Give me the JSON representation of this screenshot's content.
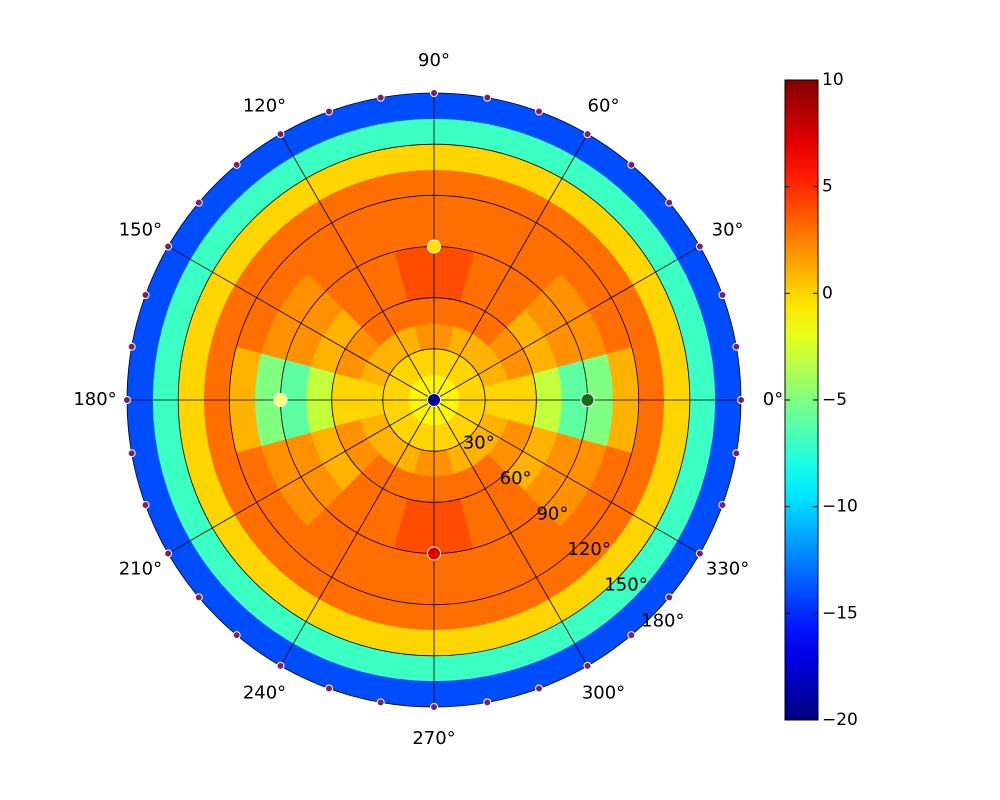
{
  "chart_data": {
    "type": "polar_heatmap",
    "colormap": "jet",
    "grid": true,
    "r_edges": [
      0,
      15,
      30,
      45,
      60,
      75,
      90,
      105,
      120,
      135,
      150,
      165,
      180
    ],
    "theta_edges": [
      -15,
      15,
      45,
      75,
      105,
      135,
      165,
      195,
      225,
      255,
      285,
      315,
      345
    ],
    "values": [
      [
        -1,
        -1,
        -1,
        -1,
        -1,
        -1,
        -1,
        -1,
        -1,
        -1,
        -1,
        -1
      ],
      [
        0,
        0,
        0,
        0,
        0,
        0,
        0,
        0,
        0,
        0,
        0,
        0
      ],
      [
        0,
        1,
        1,
        2,
        1,
        1,
        0,
        1,
        1,
        2,
        1,
        1
      ],
      [
        0,
        2,
        3,
        3,
        3,
        2,
        0,
        2,
        3,
        3,
        3,
        2
      ],
      [
        -3,
        1,
        3,
        4,
        3,
        1,
        -3,
        1,
        3,
        4,
        3,
        1
      ],
      [
        -6,
        2,
        3,
        4,
        3,
        2,
        -6,
        2,
        3,
        4,
        3,
        2
      ],
      [
        -5,
        2,
        3,
        3,
        3,
        2,
        -5,
        2,
        3,
        3,
        3,
        2
      ],
      [
        1,
        3,
        3,
        3,
        3,
        3,
        1,
        3,
        3,
        3,
        3,
        3
      ],
      [
        3,
        3,
        3,
        3,
        3,
        3,
        3,
        3,
        3,
        3,
        3,
        3
      ],
      [
        0,
        0,
        0,
        0,
        0,
        0,
        0,
        0,
        0,
        0,
        0,
        0
      ],
      [
        -7,
        -7,
        -7,
        -7,
        -7,
        -7,
        -7,
        -7,
        -7,
        -7,
        -7,
        -7
      ],
      [
        -14,
        -14,
        -14,
        -14,
        -14,
        -14,
        -14,
        -14,
        -14,
        -14,
        -14,
        -14
      ]
    ],
    "rlim": [
      0,
      180
    ],
    "rticks": [
      {
        "value": 30,
        "label": "30°"
      },
      {
        "value": 60,
        "label": "60°"
      },
      {
        "value": 90,
        "label": "90°"
      },
      {
        "value": 120,
        "label": "120°"
      },
      {
        "value": 150,
        "label": "150°"
      },
      {
        "value": 180,
        "label": "180°"
      }
    ],
    "thetaticks": [
      {
        "value": 0,
        "label": "0°"
      },
      {
        "value": 30,
        "label": "30°"
      },
      {
        "value": 60,
        "label": "60°"
      },
      {
        "value": 90,
        "label": "90°"
      },
      {
        "value": 120,
        "label": "120°"
      },
      {
        "value": 150,
        "label": "150°"
      },
      {
        "value": 180,
        "label": "180°"
      },
      {
        "value": 210,
        "label": "210°"
      },
      {
        "value": 240,
        "label": "240°"
      },
      {
        "value": 270,
        "label": "270°"
      },
      {
        "value": 300,
        "label": "300°"
      },
      {
        "value": 330,
        "label": "330°"
      }
    ],
    "markers": [
      {
        "theta": [
          0,
          10,
          20,
          30,
          40,
          50,
          60,
          70,
          80,
          90,
          100,
          110,
          120,
          130,
          140,
          150,
          160,
          170,
          180,
          190,
          200,
          210,
          220,
          230,
          240,
          250,
          260,
          270,
          280,
          290,
          300,
          310,
          320,
          330,
          340,
          350
        ],
        "r": [
          180,
          180,
          180,
          180,
          180,
          180,
          180,
          180,
          180,
          180,
          180,
          180,
          180,
          180,
          180,
          180,
          180,
          180,
          180,
          180,
          180,
          180,
          180,
          180,
          180,
          180,
          180,
          180,
          180,
          180,
          180,
          180,
          180,
          180,
          180,
          180
        ],
        "color": "#7a1f6f"
      },
      {
        "theta": [
          0,
          90,
          180,
          0,
          270
        ],
        "r": [
          0,
          90,
          90,
          90,
          90
        ],
        "colors": [
          "#00008f",
          "#ffe000",
          "#ffff80",
          "#1a6b1a",
          "#e00000"
        ]
      }
    ],
    "colorbar": {
      "ylim": [
        -20,
        10
      ],
      "yticks": [
        {
          "value": -20,
          "label": "−20"
        },
        {
          "value": -15,
          "label": "−15"
        },
        {
          "value": -10,
          "label": "−10"
        },
        {
          "value": -5,
          "label": "−5"
        },
        0,
        5,
        10
      ]
    }
  }
}
